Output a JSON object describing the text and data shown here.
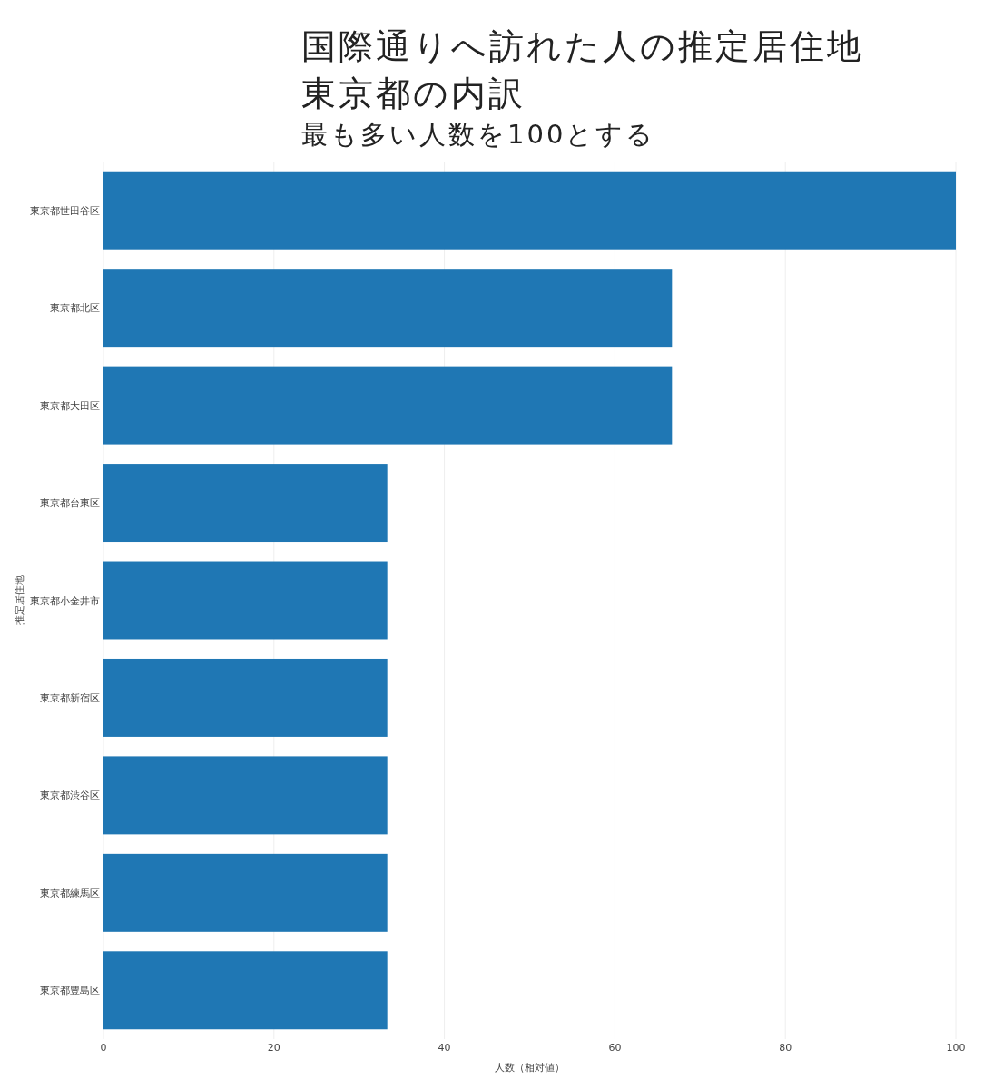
{
  "chart_data": {
    "type": "bar",
    "orientation": "horizontal",
    "title": "国際通りへ訪れた人の推定居住地東京都の内訳",
    "subtitle": "最も多い人数を100とする",
    "xlabel": "人数（相対値）",
    "ylabel": "推定居住地",
    "categories": [
      "東京都世田谷区",
      "東京都北区",
      "東京都大田区",
      "東京都台東区",
      "東京都小金井市",
      "東京都新宿区",
      "東京都渋谷区",
      "東京都練馬区",
      "東京都豊島区"
    ],
    "values": [
      100,
      66.7,
      66.7,
      33.3,
      33.3,
      33.3,
      33.3,
      33.3,
      33.3
    ],
    "color": "#1f77b4",
    "xlim": [
      0,
      100
    ],
    "xticks": [
      0,
      20,
      40,
      60,
      80,
      100
    ],
    "grid": "x"
  }
}
